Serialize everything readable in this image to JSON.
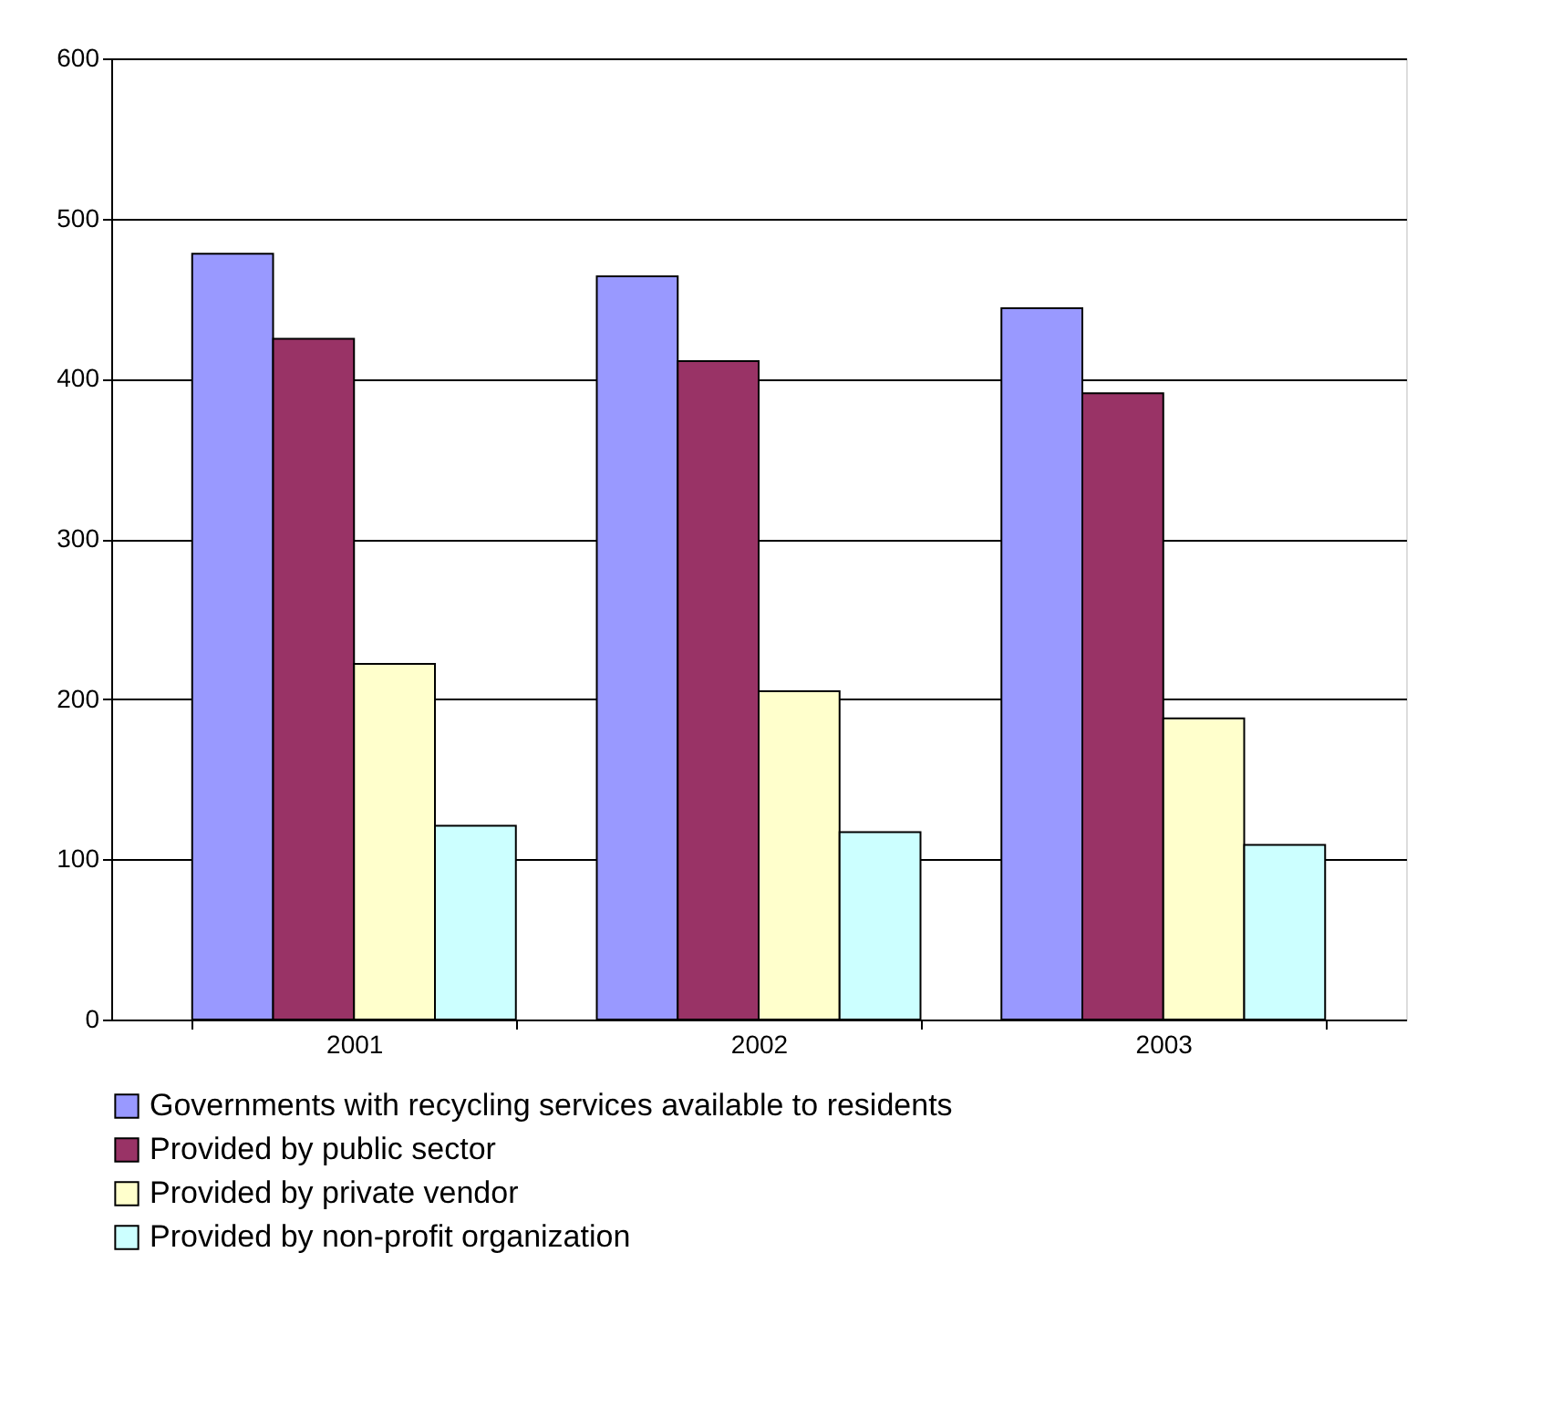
{
  "chart_data": {
    "type": "bar",
    "categories": [
      "2001",
      "2002",
      "2003"
    ],
    "series": [
      {
        "name": "Governments with recycling services available to residents",
        "color": "#9999ff",
        "values": [
          478,
          464,
          444
        ]
      },
      {
        "name": "Provided by public sector",
        "color": "#993366",
        "values": [
          425,
          411,
          391
        ]
      },
      {
        "name": "Provided by private vendor",
        "color": "#ffffcc",
        "values": [
          222,
          205,
          188
        ]
      },
      {
        "name": "Provided by non-profit organization",
        "color": "#ccffff",
        "values": [
          121,
          117,
          109
        ]
      }
    ],
    "ylim": [
      0,
      600
    ],
    "yticks": [
      0,
      100,
      200,
      300,
      400,
      500,
      600
    ],
    "grid": "y",
    "legend": "bottom"
  }
}
